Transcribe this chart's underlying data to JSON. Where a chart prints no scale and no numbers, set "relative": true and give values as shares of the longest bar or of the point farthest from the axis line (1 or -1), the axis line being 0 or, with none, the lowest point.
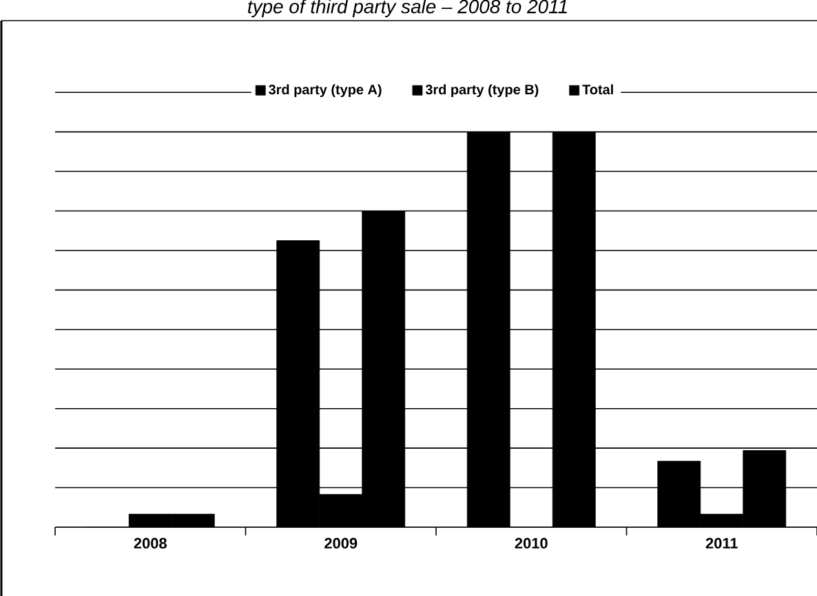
{
  "chart_data": {
    "type": "bar",
    "title": "type of third party sale – 2008 to 2011",
    "relative": true,
    "grid": "y",
    "legend": "top",
    "categories": [
      "2008",
      "2009",
      "2010",
      "2011"
    ],
    "series": [
      {
        "name": "3rd party (type A)",
        "color": "#000000",
        "values": [
          0,
          0.725,
          1,
          0.167
        ]
      },
      {
        "name": "3rd party (type B)",
        "color": "#000000",
        "values": [
          0.033,
          0.083,
          0,
          0.033
        ]
      },
      {
        "name": "Total",
        "color": "#000000",
        "values": [
          0.033,
          0.8,
          1,
          0.194
        ]
      }
    ]
  }
}
